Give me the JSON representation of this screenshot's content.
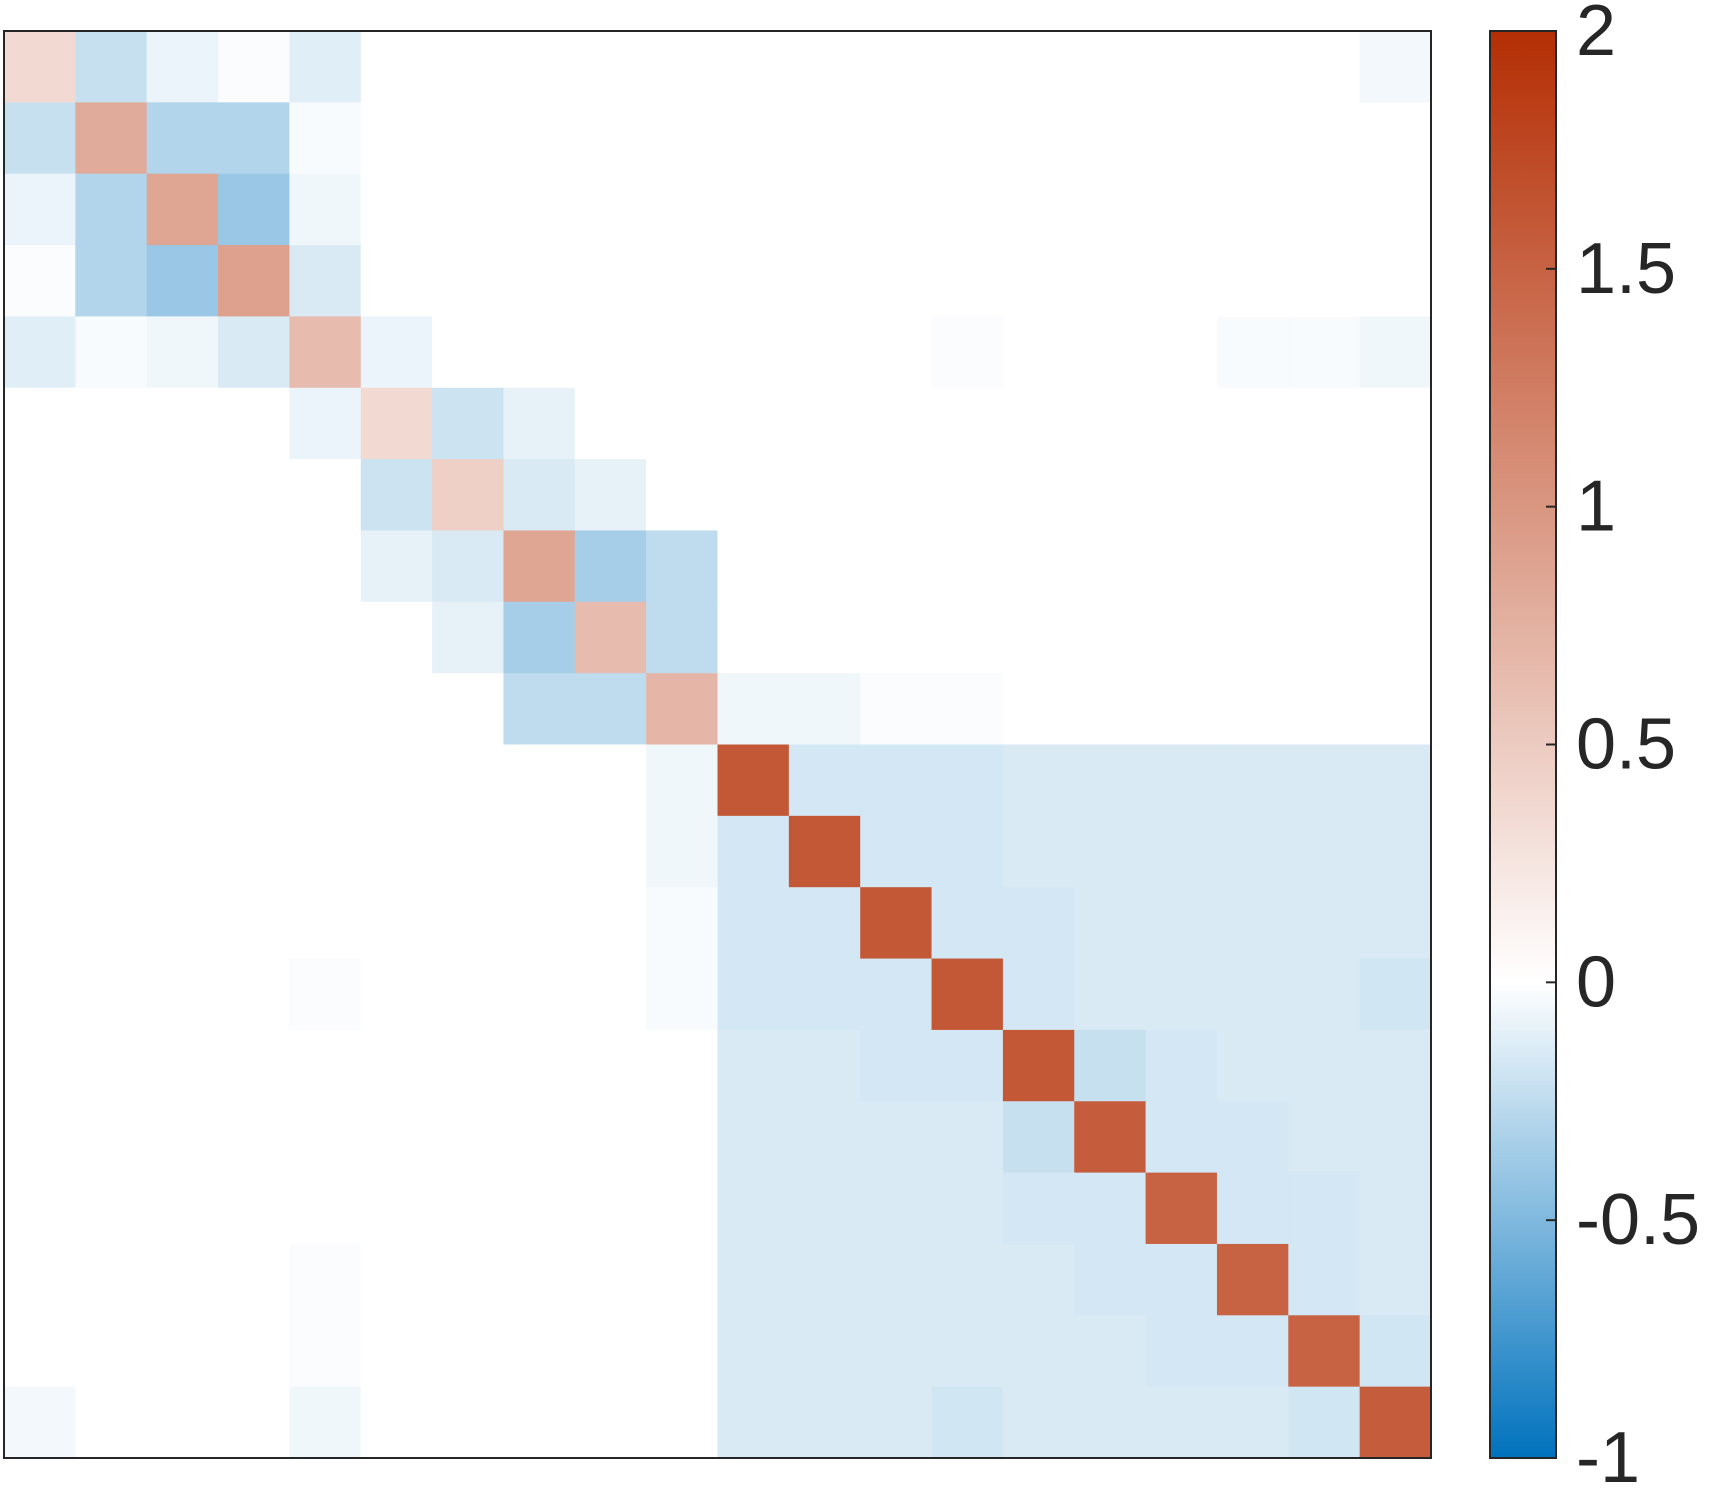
{
  "chart_data": {
    "type": "heatmap",
    "size": 20,
    "colormap": {
      "min": -1,
      "max": 2,
      "low_color": "#0072bd",
      "mid_color": "#ffffff",
      "high_color": "#b42e04"
    },
    "colorbar": {
      "ticks": [
        2,
        1.5,
        1,
        0.5,
        0,
        -0.5,
        -1
      ],
      "tick_labels": [
        "2",
        "1.5",
        "1",
        "0.5",
        "0",
        "-0.5",
        "-1"
      ]
    },
    "values": [
      [
        0.35,
        -0.22,
        -0.08,
        -0.02,
        -0.12,
        0,
        0,
        0,
        0,
        0,
        0,
        0,
        0,
        0,
        0,
        0,
        0,
        0,
        0,
        -0.05
      ],
      [
        -0.22,
        0.8,
        -0.3,
        -0.3,
        -0.03,
        0,
        0,
        0,
        0,
        0,
        0,
        0,
        0,
        0,
        0,
        0,
        0,
        0,
        0,
        0
      ],
      [
        -0.08,
        -0.3,
        0.85,
        -0.4,
        -0.06,
        0,
        0,
        0,
        0,
        0,
        0,
        0,
        0,
        0,
        0,
        0,
        0,
        0,
        0,
        0
      ],
      [
        -0.02,
        -0.3,
        -0.4,
        0.9,
        -0.15,
        0,
        0,
        0,
        0,
        0,
        0,
        0,
        0,
        0,
        0,
        0,
        0,
        0,
        0,
        0
      ],
      [
        -0.12,
        -0.03,
        -0.06,
        -0.15,
        0.65,
        -0.08,
        0,
        0,
        0,
        0,
        0,
        0,
        0,
        -0.02,
        0,
        0,
        0,
        -0.03,
        -0.03,
        -0.06
      ],
      [
        0,
        0,
        0,
        0,
        -0.08,
        0.35,
        -0.2,
        -0.1,
        0,
        0,
        0,
        0,
        0,
        0,
        0,
        0,
        0,
        0,
        0,
        0
      ],
      [
        0,
        0,
        0,
        0,
        0,
        -0.2,
        0.45,
        -0.15,
        -0.1,
        0,
        0,
        0,
        0,
        0,
        0,
        0,
        0,
        0,
        0,
        0
      ],
      [
        0,
        0,
        0,
        0,
        0,
        -0.1,
        -0.15,
        0.85,
        -0.35,
        -0.25,
        0,
        0,
        0,
        0,
        0,
        0,
        0,
        0,
        0,
        0
      ],
      [
        0,
        0,
        0,
        0,
        0,
        0,
        -0.1,
        -0.35,
        0.65,
        -0.25,
        0,
        0,
        0,
        0,
        0,
        0,
        0,
        0,
        0,
        0
      ],
      [
        0,
        0,
        0,
        0,
        0,
        0,
        0,
        -0.25,
        -0.25,
        0.7,
        -0.06,
        -0.06,
        -0.02,
        -0.02,
        0,
        0,
        0,
        0,
        0,
        0
      ],
      [
        0,
        0,
        0,
        0,
        0,
        0,
        0,
        0,
        0,
        -0.06,
        1.6,
        -0.17,
        -0.17,
        -0.17,
        -0.15,
        -0.15,
        -0.15,
        -0.15,
        -0.15,
        -0.15
      ],
      [
        0,
        0,
        0,
        0,
        0,
        0,
        0,
        0,
        0,
        -0.06,
        -0.17,
        1.6,
        -0.17,
        -0.17,
        -0.15,
        -0.15,
        -0.15,
        -0.15,
        -0.15,
        -0.15
      ],
      [
        0,
        0,
        0,
        0,
        0,
        0,
        0,
        0,
        0,
        -0.03,
        -0.17,
        -0.17,
        1.6,
        -0.17,
        -0.17,
        -0.15,
        -0.15,
        -0.15,
        -0.15,
        -0.15
      ],
      [
        0,
        0,
        0,
        0,
        -0.02,
        0,
        0,
        0,
        0,
        -0.03,
        -0.17,
        -0.17,
        -0.17,
        1.6,
        -0.17,
        -0.15,
        -0.15,
        -0.15,
        -0.15,
        -0.18
      ],
      [
        0,
        0,
        0,
        0,
        0,
        0,
        0,
        0,
        0,
        0,
        -0.15,
        -0.15,
        -0.17,
        -0.17,
        1.6,
        -0.22,
        -0.17,
        -0.15,
        -0.15,
        -0.15
      ],
      [
        0,
        0,
        0,
        0,
        0,
        0,
        0,
        0,
        0,
        0,
        -0.15,
        -0.15,
        -0.15,
        -0.15,
        -0.22,
        1.55,
        -0.17,
        -0.17,
        -0.15,
        -0.15
      ],
      [
        0,
        0,
        0,
        0,
        0,
        0,
        0,
        0,
        0,
        0,
        -0.15,
        -0.15,
        -0.15,
        -0.15,
        -0.17,
        -0.17,
        1.5,
        -0.17,
        -0.17,
        -0.15
      ],
      [
        0,
        0,
        0,
        0,
        -0.02,
        0,
        0,
        0,
        0,
        0,
        -0.15,
        -0.15,
        -0.15,
        -0.15,
        -0.15,
        -0.17,
        -0.17,
        1.5,
        -0.17,
        -0.15
      ],
      [
        0,
        0,
        0,
        0,
        -0.02,
        0,
        0,
        0,
        0,
        0,
        -0.15,
        -0.15,
        -0.15,
        -0.15,
        -0.15,
        -0.15,
        -0.17,
        -0.17,
        1.5,
        -0.18
      ],
      [
        -0.05,
        0,
        0,
        0,
        -0.06,
        0,
        0,
        0,
        0,
        0,
        -0.15,
        -0.15,
        -0.15,
        -0.18,
        -0.15,
        -0.15,
        -0.15,
        -0.15,
        -0.18,
        1.55
      ]
    ]
  }
}
